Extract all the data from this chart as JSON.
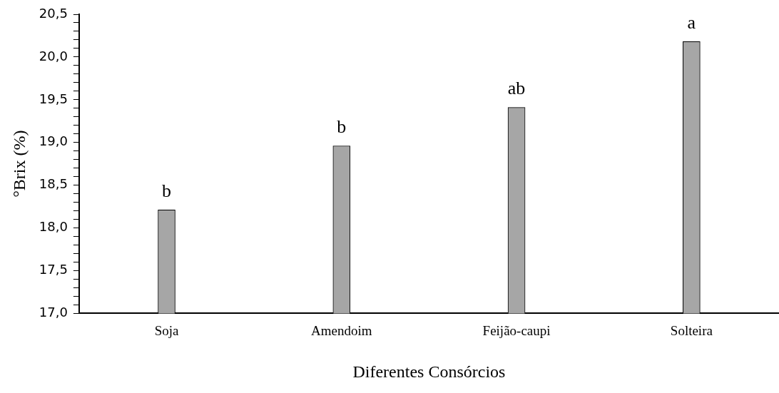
{
  "chart_data": {
    "type": "bar",
    "xlabel": "Diferentes Consórcios",
    "ylabel": "°Brix (%)",
    "categories": [
      "Soja",
      "Amendoim",
      "Feijão-caupi",
      "Solteira"
    ],
    "values": [
      18.21,
      18.96,
      19.41,
      20.18
    ],
    "color": "#a6a6a6",
    "ylim": [
      17.0,
      20.5
    ],
    "yticks": [
      {
        "value": 17.0,
        "label": "17,0"
      },
      {
        "value": 17.1,
        "label": null
      },
      {
        "value": 17.2,
        "label": null
      },
      {
        "value": 17.3,
        "label": null
      },
      {
        "value": 17.4,
        "label": null
      },
      {
        "value": 17.5,
        "label": "17,5"
      },
      {
        "value": 17.6,
        "label": null
      },
      {
        "value": 17.7,
        "label": null
      },
      {
        "value": 17.8,
        "label": null
      },
      {
        "value": 17.9,
        "label": null
      },
      {
        "value": 18.0,
        "label": "18,0"
      },
      {
        "value": 18.1,
        "label": null
      },
      {
        "value": 18.2,
        "label": null
      },
      {
        "value": 18.3,
        "label": null
      },
      {
        "value": 18.4,
        "label": null
      },
      {
        "value": 18.5,
        "label": "18,5"
      },
      {
        "value": 18.6,
        "label": null
      },
      {
        "value": 18.7,
        "label": null
      },
      {
        "value": 18.8,
        "label": null
      },
      {
        "value": 18.9,
        "label": null
      },
      {
        "value": 19.0,
        "label": "19,0"
      },
      {
        "value": 19.1,
        "label": null
      },
      {
        "value": 19.2,
        "label": null
      },
      {
        "value": 19.3,
        "label": null
      },
      {
        "value": 19.4,
        "label": null
      },
      {
        "value": 19.5,
        "label": "19,5"
      },
      {
        "value": 19.6,
        "label": null
      },
      {
        "value": 19.7,
        "label": null
      },
      {
        "value": 19.8,
        "label": null
      },
      {
        "value": 19.9,
        "label": null
      },
      {
        "value": 20.0,
        "label": "20,0"
      },
      {
        "value": 20.1,
        "label": null
      },
      {
        "value": 20.2,
        "label": null
      },
      {
        "value": 20.3,
        "label": null
      },
      {
        "value": 20.4,
        "label": null
      },
      {
        "value": 20.5,
        "label": "20,5"
      }
    ],
    "annotations": [
      {
        "text": "b",
        "x": "Soja",
        "y": 18.21
      },
      {
        "text": "b",
        "x": "Amendoim",
        "y": 18.96
      },
      {
        "text": "ab",
        "x": "Feijão-caupi",
        "y": 19.41
      },
      {
        "text": "a",
        "x": "Solteira",
        "y": 20.18
      }
    ],
    "grid": false,
    "legend": false
  }
}
